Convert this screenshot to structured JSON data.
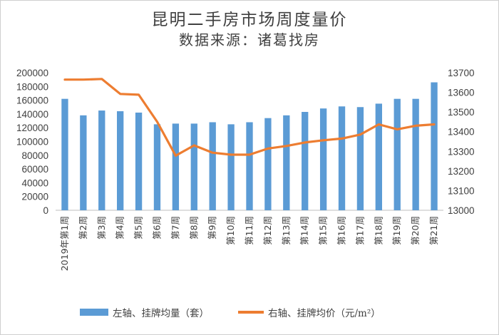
{
  "chart_data": {
    "type": "bar+line",
    "title": "昆明二手房市场周度量价",
    "subtitle": "数据来源：诸葛找房",
    "categories": [
      "2019年第1周",
      "第2周",
      "第3周",
      "第4周",
      "第5周",
      "第6周",
      "第7周",
      "第8周",
      "第9周",
      "第10周",
      "第11周",
      "第12周",
      "第13周",
      "第14周",
      "第15周",
      "第16周",
      "第17周",
      "第18周",
      "第19周",
      "第20周",
      "第21周"
    ],
    "series": [
      {
        "name": "左轴、挂牌均量（套）",
        "type": "bar",
        "axis": "left",
        "color": "#5b9bd5",
        "values": [
          162000,
          138000,
          145000,
          144000,
          142000,
          125000,
          126000,
          126000,
          128000,
          125000,
          128000,
          134000,
          138000,
          143000,
          148000,
          151000,
          150000,
          155000,
          162000,
          162000,
          186000
        ]
      },
      {
        "name": "右轴、挂牌均价（元/m²）",
        "type": "line",
        "axis": "right",
        "color": "#ed7d31",
        "values": [
          13665,
          13665,
          13668,
          13592,
          13588,
          13450,
          13278,
          13330,
          13293,
          13283,
          13283,
          13314,
          13327,
          13345,
          13356,
          13365,
          13385,
          13437,
          13412,
          13430,
          13437
        ]
      }
    ],
    "y_left": {
      "min": 0,
      "max": 200000,
      "step": 20000,
      "ticks": [
        "0",
        "20000",
        "40000",
        "60000",
        "80000",
        "100000",
        "120000",
        "140000",
        "160000",
        "180000",
        "200000"
      ]
    },
    "y_right": {
      "min": 13000,
      "max": 13700,
      "step": 100,
      "ticks": [
        "13000",
        "13100",
        "13200",
        "13300",
        "13400",
        "13500",
        "13600",
        "13700"
      ]
    },
    "grid": false,
    "legend_position": "bottom"
  }
}
